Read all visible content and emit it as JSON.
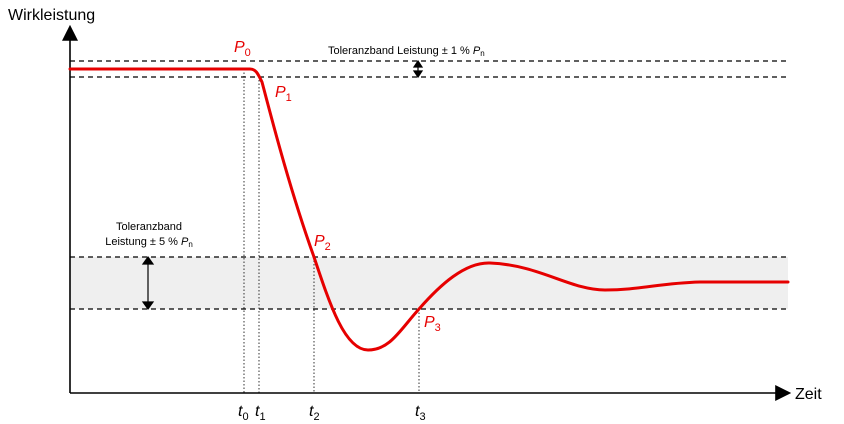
{
  "axes": {
    "y_label": "Wirkleistung",
    "x_label": "Zeit"
  },
  "bands": {
    "upper_label": "Toleranzband Leistung ± 1 % ",
    "upper_symbol": "P",
    "upper_sub": "n",
    "lower_label_line1": "Toleranzband",
    "lower_label_line2": "Leistung ± 5 % ",
    "lower_symbol": "P",
    "lower_sub": "n"
  },
  "points": [
    {
      "symbol": "P",
      "sub": "0"
    },
    {
      "symbol": "P",
      "sub": "1"
    },
    {
      "symbol": "P",
      "sub": "2"
    },
    {
      "symbol": "P",
      "sub": "3"
    }
  ],
  "times": [
    {
      "symbol": "t",
      "sub": "0"
    },
    {
      "symbol": "t",
      "sub": "1"
    },
    {
      "symbol": "t",
      "sub": "2"
    },
    {
      "symbol": "t",
      "sub": "3"
    }
  ],
  "colors": {
    "curve": "#e60000",
    "band_fill": "#efefef",
    "axis": "#000000"
  }
}
